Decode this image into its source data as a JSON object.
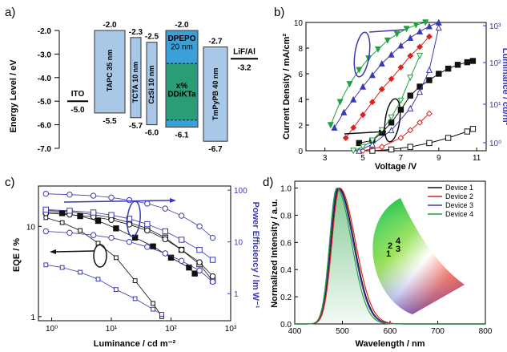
{
  "panel_a": {
    "label": "a)",
    "ylabel": "Energy Level / eV",
    "ticks": [
      "-2.0",
      "-3.0",
      "-4.0",
      "-5.0",
      "-6.0",
      "-7.0"
    ],
    "chart_data": {
      "type": "diagram",
      "ylim": [
        -7.0,
        -2.0
      ],
      "layers": [
        {
          "name": "ITO",
          "level": -5.0,
          "label_top": "ITO",
          "label_bottom": "-5.0"
        },
        {
          "name": "TAPC",
          "thickness": "35 nm",
          "lumo": -2.0,
          "homo": -5.5,
          "top_label": "-2.0",
          "bottom_label": "-5.5",
          "color": "#a9c8e8"
        },
        {
          "name": "TCTA",
          "thickness": "10 nm",
          "lumo": -2.3,
          "homo": -5.7,
          "top_label": "-2.3",
          "bottom_label": "-5.7",
          "color": "#a9c8e8"
        },
        {
          "name": "CzSi",
          "thickness": "10 nm",
          "lumo": -2.5,
          "homo": -6.0,
          "top_label": "-2.5",
          "bottom_label": "-6.0",
          "color": "#a9c8e8"
        },
        {
          "name": "DPEPO",
          "thickness": "20 nm",
          "lumo": -2.0,
          "homo": -6.1,
          "top_label": "-2.0",
          "bottom_label": "-6.1",
          "color": "#3aa0d8"
        },
        {
          "name": "x% DDiKTa",
          "lumo": -3.4,
          "homo": -5.8,
          "color": "#2a9d76"
        },
        {
          "name": "TmPyPB",
          "thickness": "40 nm",
          "lumo": -2.7,
          "homo": -6.7,
          "top_label": "-2.7",
          "bottom_label": "-6.7",
          "color": "#a9c8e8"
        },
        {
          "name": "LiF/Al",
          "level": -3.2,
          "label_top": "LiF/Al",
          "label_bottom": "-3.2"
        }
      ]
    }
  },
  "panel_b": {
    "label": "b)",
    "xlabel": "Voltage /V",
    "ylabel": "Current Density / mA/cm²",
    "ylabel_right": "Luminance / cd/m²",
    "chart_data": {
      "type": "line",
      "xlim": [
        2,
        11.5
      ],
      "ylim": [
        0,
        10
      ],
      "x_ticks": [
        3,
        5,
        7,
        9,
        11
      ],
      "y_ticks": [
        0,
        2,
        4,
        6,
        8,
        10
      ],
      "y2_scale": "log",
      "y2_ticks": [
        "10⁰",
        "10¹",
        "10²",
        "10³"
      ],
      "series": [
        {
          "color": "#111111",
          "marker": "square-filled",
          "axis": "left",
          "x": [
            4.8,
            5.5,
            6.0,
            6.5,
            7.0,
            7.5,
            8.0,
            8.5,
            9.0,
            9.5,
            10.0,
            10.5,
            10.8
          ],
          "y": [
            0.6,
            0.8,
            1.4,
            2.2,
            3.2,
            4.3,
            5.0,
            5.5,
            6.0,
            6.4,
            6.7,
            6.9,
            7.0
          ]
        },
        {
          "color": "#e02020",
          "marker": "diamond-filled",
          "axis": "left",
          "x": [
            4.1,
            4.5,
            5.0,
            5.5,
            6.0,
            6.5,
            7.0,
            7.5,
            8.0,
            8.5
          ],
          "y": [
            1.0,
            1.8,
            2.8,
            3.8,
            4.8,
            5.6,
            6.5,
            7.4,
            8.1,
            8.9
          ]
        },
        {
          "color": "#3a3ab0",
          "marker": "triangle-filled",
          "axis": "left",
          "x": [
            3.5,
            4.0,
            4.5,
            5.0,
            5.5,
            6.0,
            6.5,
            7.0,
            7.5,
            8.0,
            8.5,
            9.0
          ],
          "y": [
            1.8,
            3.0,
            4.0,
            5.0,
            5.9,
            6.8,
            7.5,
            8.2,
            8.8,
            9.3,
            9.7,
            10.0
          ]
        },
        {
          "color": "#20a040",
          "marker": "triangle-down-filled",
          "axis": "left",
          "x": [
            3.3,
            3.8,
            4.3,
            4.8,
            5.3,
            5.8,
            6.3,
            6.8,
            7.3,
            7.8,
            8.3
          ],
          "y": [
            2.0,
            3.8,
            5.2,
            6.3,
            7.2,
            7.9,
            8.6,
            9.1,
            9.5,
            9.8,
            10.0
          ]
        },
        {
          "color": "#111111",
          "marker": "square-open",
          "axis": "right",
          "x": [
            5.5,
            6.5,
            7.5,
            8.5,
            9.5,
            10.5,
            10.8
          ],
          "y": [
            0.0,
            0.1,
            0.3,
            0.6,
            1.0,
            1.5,
            1.7
          ]
        },
        {
          "color": "#e02020",
          "marker": "diamond-open",
          "axis": "right",
          "x": [
            5.0,
            6.0,
            7.0,
            7.5,
            8.0,
            8.5
          ],
          "y": [
            0.0,
            0.3,
            1.0,
            1.6,
            2.2,
            2.9
          ]
        },
        {
          "color": "#3a3ab0",
          "marker": "triangle-open",
          "axis": "right",
          "x": [
            4.8,
            5.5,
            6.5,
            7.5,
            8.0,
            8.5,
            9.0
          ],
          "y": [
            0.0,
            0.5,
            1.6,
            3.3,
            4.6,
            6.3,
            9.6
          ]
        },
        {
          "color": "#20a040",
          "marker": "triangle-down-open",
          "axis": "right",
          "x": [
            4.5,
            5.0,
            5.5,
            6.0,
            6.5,
            7.0,
            7.5,
            8.0
          ],
          "y": [
            0.0,
            0.3,
            0.8,
            1.6,
            2.6,
            3.9,
            5.7,
            7.4
          ]
        }
      ]
    }
  },
  "panel_c": {
    "label": "c)",
    "xlabel": "Luminance / cd m⁻²",
    "ylabel": "EQE / %",
    "ylabel_right": "Power Efficiency / lm W⁻¹",
    "chart_data": {
      "type": "scatter",
      "x_scale": "log",
      "y_scale": "log",
      "x_ticks": [
        "10⁰",
        "10¹",
        "10²",
        "10³"
      ],
      "y_ticks": [
        "1",
        "10"
      ],
      "y2_ticks": [
        "1",
        "10",
        "100"
      ],
      "series": [
        {
          "color": "#111111",
          "marker": "square-filled",
          "axis": "left",
          "x": [
            0.8,
            1.5,
            3,
            6,
            12,
            25,
            50,
            100,
            200,
            250
          ],
          "y": [
            14.5,
            14.0,
            13.0,
            11.5,
            9.5,
            7.5,
            6.0,
            4.5,
            3.5,
            3.0
          ]
        },
        {
          "color": "#111111",
          "marker": "square-open",
          "axis": "left",
          "x": [
            0.8,
            2,
            5,
            10,
            20,
            40,
            80,
            150,
            300,
            500
          ],
          "y": [
            15,
            14.5,
            13.5,
            12.5,
            11,
            9.5,
            7.5,
            5.5,
            3.8,
            2.5
          ]
        },
        {
          "color": "#111111",
          "marker": "circle-open",
          "axis": "left",
          "x": [
            0.8,
            2,
            5,
            10,
            20,
            40,
            80,
            150,
            300,
            500
          ],
          "y": [
            14.0,
            13.5,
            12.8,
            11.8,
            10.5,
            9.0,
            7.2,
            5.5,
            4.0,
            2.8
          ]
        },
        {
          "color": "#111111",
          "marker": "square-open-small",
          "axis": "left",
          "x": [
            0.8,
            1.5,
            3,
            6,
            12,
            25,
            50,
            70
          ],
          "y": [
            12.5,
            11.0,
            9.0,
            6.5,
            4.5,
            2.5,
            1.4,
            1.0
          ]
        },
        {
          "color": "#3a3ab0",
          "marker": "circle-open",
          "axis": "right",
          "x": [
            0.8,
            2,
            5,
            10,
            20,
            40,
            80,
            150,
            300,
            500
          ],
          "y": [
            85,
            82,
            78,
            72,
            64,
            55,
            44,
            32,
            20,
            12
          ]
        },
        {
          "color": "#3a3ab0",
          "marker": "square-open",
          "axis": "right",
          "x": [
            0.8,
            2,
            5,
            10,
            20,
            40,
            80,
            150,
            300,
            500
          ],
          "y": [
            42,
            40,
            37,
            33,
            28,
            22,
            16,
            11,
            7,
            4.5
          ]
        },
        {
          "color": "#3a3ab0",
          "marker": "circle-open",
          "axis": "right",
          "x": [
            0.8,
            2,
            5,
            10,
            20,
            40,
            80,
            150,
            300,
            500
          ],
          "y": [
            16,
            15,
            13.5,
            12,
            10,
            8,
            6,
            4.3,
            2.8,
            1.7
          ]
        },
        {
          "color": "#3a3ab0",
          "marker": "square-open-small",
          "axis": "right",
          "x": [
            0.8,
            1.5,
            3,
            6,
            12,
            25,
            50,
            70
          ],
          "y": [
            3.6,
            3.2,
            2.6,
            1.9,
            1.2,
            0.8,
            0.5,
            0.4
          ]
        }
      ]
    }
  },
  "panel_d": {
    "label": "d)",
    "xlabel": "Wavelength / nm",
    "ylabel": "Normalized Intensity / a.u.",
    "chart_data": {
      "type": "line",
      "xlim": [
        400,
        800
      ],
      "ylim": [
        0,
        1.05
      ],
      "x_ticks": [
        400,
        500,
        600,
        700,
        800
      ],
      "y_ticks": [
        "0.0",
        "0.2",
        "0.4",
        "0.6",
        "0.8",
        "1.0"
      ],
      "legend_position": "top-right",
      "series": [
        {
          "name": "Device 1",
          "color": "#111111",
          "peak": 492,
          "width": 28
        },
        {
          "name": "Device 2",
          "color": "#e02020",
          "peak": 494,
          "width": 29
        },
        {
          "name": "Device 3",
          "color": "#3a3ab0",
          "peak": 490,
          "width": 28
        },
        {
          "name": "Device 4",
          "color": "#20a040",
          "peak": 488,
          "width": 27
        }
      ],
      "cie_labels": [
        "1",
        "2",
        "3",
        "4"
      ]
    }
  }
}
